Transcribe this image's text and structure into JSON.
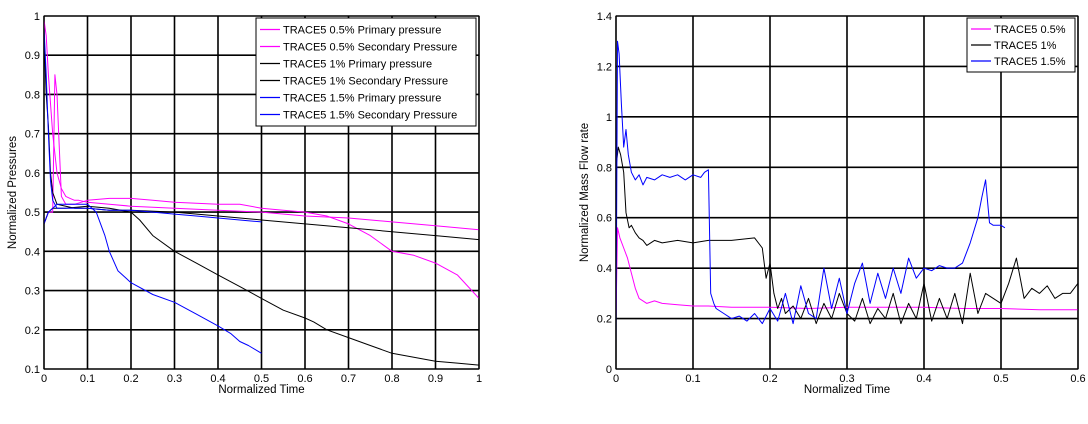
{
  "chart_data": [
    {
      "type": "line",
      "xlabel": "Normalized Time",
      "ylabel": "Normalized Pressures",
      "xlim": [
        0,
        1
      ],
      "ylim": [
        0.1,
        1
      ],
      "xticks": [
        0,
        0.1,
        0.2,
        0.3,
        0.4,
        0.5,
        0.6,
        0.7,
        0.8,
        0.9,
        1
      ],
      "xtick_labels": [
        "0",
        "0.1",
        "0.2",
        "0.3",
        "0.4",
        "0.5",
        "0.6",
        "0.7",
        "0.8",
        "0.9",
        "1"
      ],
      "yticks": [
        0.1,
        0.2,
        0.3,
        0.4,
        0.5,
        0.6,
        0.7,
        0.8,
        0.9,
        1
      ],
      "ytick_labels": [
        "0.1",
        "0.2",
        "0.3",
        "0.4",
        "0.5",
        "0.6",
        "0.7",
        "0.8",
        "0.9",
        "1"
      ],
      "grid": true,
      "legend_position": "top-right",
      "series": [
        {
          "name": "TRACE5 0.5% Primary pressure",
          "color": "#ff00ff",
          "x": [
            0,
            0.005,
            0.01,
            0.02,
            0.03,
            0.04,
            0.05,
            0.06,
            0.07,
            0.08,
            0.1,
            0.15,
            0.2,
            0.3,
            0.4,
            0.5,
            0.6,
            0.7,
            0.8,
            0.9,
            1.0
          ],
          "y": [
            0.99,
            0.95,
            0.85,
            0.7,
            0.6,
            0.56,
            0.54,
            0.535,
            0.53,
            0.53,
            0.525,
            0.52,
            0.515,
            0.51,
            0.505,
            0.5,
            0.49,
            0.485,
            0.475,
            0.465,
            0.455
          ]
        },
        {
          "name": "TRACE5 0.5% Secondary Pressure",
          "color": "#ff00ff",
          "x": [
            0,
            0.01,
            0.02,
            0.025,
            0.03,
            0.04,
            0.05,
            0.07,
            0.1,
            0.15,
            0.2,
            0.25,
            0.3,
            0.4,
            0.45,
            0.5,
            0.55,
            0.6,
            0.65,
            0.7,
            0.75,
            0.8,
            0.85,
            0.9,
            0.95,
            1.0
          ],
          "y": [
            0.47,
            0.5,
            0.5,
            0.85,
            0.8,
            0.54,
            0.52,
            0.52,
            0.53,
            0.535,
            0.535,
            0.53,
            0.525,
            0.52,
            0.52,
            0.51,
            0.505,
            0.5,
            0.49,
            0.47,
            0.44,
            0.4,
            0.39,
            0.37,
            0.34,
            0.28
          ]
        },
        {
          "name": "TRACE5 1% Primary pressure",
          "color": "#000000",
          "x": [
            0,
            0.005,
            0.01,
            0.015,
            0.02,
            0.03,
            0.05,
            0.07,
            0.1,
            0.15,
            0.2,
            0.3,
            0.4,
            0.5,
            0.6,
            0.7,
            0.8,
            0.9,
            1.0
          ],
          "y": [
            0.95,
            0.8,
            0.72,
            0.6,
            0.55,
            0.52,
            0.515,
            0.51,
            0.51,
            0.505,
            0.505,
            0.5,
            0.49,
            0.48,
            0.47,
            0.46,
            0.45,
            0.44,
            0.43
          ]
        },
        {
          "name": "TRACE5 1% Secondary Pressure",
          "color": "#000000",
          "x": [
            0,
            0.01,
            0.02,
            0.03,
            0.05,
            0.1,
            0.15,
            0.2,
            0.22,
            0.25,
            0.3,
            0.35,
            0.4,
            0.45,
            0.5,
            0.55,
            0.6,
            0.62,
            0.65,
            0.7,
            0.75,
            0.8,
            0.85,
            0.9,
            0.95,
            1.0
          ],
          "y": [
            0.47,
            0.5,
            0.51,
            0.51,
            0.51,
            0.515,
            0.51,
            0.5,
            0.48,
            0.44,
            0.4,
            0.37,
            0.34,
            0.31,
            0.28,
            0.25,
            0.23,
            0.22,
            0.2,
            0.18,
            0.16,
            0.14,
            0.13,
            0.12,
            0.115,
            0.11
          ]
        },
        {
          "name": "TRACE5 1.5% Primary pressure",
          "color": "#0000ff",
          "x": [
            0,
            0.005,
            0.01,
            0.015,
            0.02,
            0.03,
            0.05,
            0.07,
            0.1,
            0.15,
            0.2,
            0.25,
            0.3,
            0.35,
            0.4,
            0.45,
            0.5
          ],
          "y": [
            0.97,
            0.85,
            0.7,
            0.58,
            0.53,
            0.51,
            0.51,
            0.51,
            0.51,
            0.505,
            0.505,
            0.5,
            0.495,
            0.49,
            0.485,
            0.48,
            0.475
          ]
        },
        {
          "name": "TRACE5 1.5% Secondary Pressure",
          "color": "#0000ff",
          "x": [
            0,
            0.01,
            0.02,
            0.03,
            0.05,
            0.07,
            0.1,
            0.12,
            0.14,
            0.15,
            0.17,
            0.2,
            0.25,
            0.3,
            0.35,
            0.4,
            0.43,
            0.45,
            0.47,
            0.5
          ],
          "y": [
            0.47,
            0.5,
            0.51,
            0.52,
            0.52,
            0.52,
            0.52,
            0.5,
            0.44,
            0.4,
            0.35,
            0.32,
            0.29,
            0.27,
            0.24,
            0.21,
            0.19,
            0.17,
            0.16,
            0.14
          ]
        }
      ]
    },
    {
      "type": "line",
      "xlabel": "Normalized Time",
      "ylabel": "Normalized Mass Flow rate",
      "xlim": [
        0,
        0.6
      ],
      "ylim": [
        0,
        1.4
      ],
      "xticks": [
        0,
        0.1,
        0.2,
        0.3,
        0.4,
        0.5,
        0.6
      ],
      "xtick_labels": [
        "0",
        "0.1",
        "0.2",
        "0.3",
        "0.4",
        "0.5",
        "0.6"
      ],
      "yticks": [
        0,
        0.2,
        0.4,
        0.6,
        0.8,
        1.0,
        1.2,
        1.4
      ],
      "ytick_labels": [
        "0",
        "0.2",
        "0.4",
        "0.6",
        "0.8",
        "1",
        "1.2",
        "1.4"
      ],
      "grid": true,
      "legend_position": "top-right",
      "series": [
        {
          "name": "TRACE5 0.5%",
          "color": "#ff00ff",
          "x": [
            0,
            0.002,
            0.005,
            0.01,
            0.015,
            0.02,
            0.025,
            0.03,
            0.035,
            0.04,
            0.05,
            0.06,
            0.08,
            0.1,
            0.12,
            0.15,
            0.2,
            0.25,
            0.3,
            0.35,
            0.4,
            0.45,
            0.5,
            0.55,
            0.6
          ],
          "y": [
            0.2,
            0.56,
            0.52,
            0.48,
            0.44,
            0.38,
            0.32,
            0.28,
            0.27,
            0.26,
            0.27,
            0.26,
            0.255,
            0.25,
            0.25,
            0.245,
            0.245,
            0.24,
            0.245,
            0.245,
            0.245,
            0.24,
            0.24,
            0.235,
            0.235
          ]
        },
        {
          "name": "TRACE5 1%",
          "color": "#000000",
          "x": [
            0,
            0.003,
            0.006,
            0.01,
            0.013,
            0.017,
            0.02,
            0.025,
            0.03,
            0.035,
            0.04,
            0.05,
            0.06,
            0.08,
            0.1,
            0.12,
            0.15,
            0.18,
            0.19,
            0.195,
            0.2,
            0.205,
            0.21,
            0.215,
            0.22,
            0.23,
            0.24,
            0.25,
            0.26,
            0.27,
            0.28,
            0.29,
            0.3,
            0.31,
            0.32,
            0.33,
            0.34,
            0.35,
            0.36,
            0.37,
            0.38,
            0.39,
            0.4,
            0.41,
            0.42,
            0.43,
            0.44,
            0.45,
            0.46,
            0.47,
            0.48,
            0.49,
            0.5,
            0.51,
            0.52,
            0.53,
            0.54,
            0.55,
            0.56,
            0.57,
            0.58,
            0.59,
            0.6
          ],
          "y": [
            0.8,
            0.88,
            0.85,
            0.78,
            0.62,
            0.56,
            0.57,
            0.54,
            0.52,
            0.51,
            0.49,
            0.51,
            0.5,
            0.51,
            0.5,
            0.51,
            0.51,
            0.52,
            0.48,
            0.36,
            0.42,
            0.3,
            0.24,
            0.28,
            0.22,
            0.25,
            0.2,
            0.28,
            0.18,
            0.26,
            0.2,
            0.3,
            0.22,
            0.19,
            0.28,
            0.18,
            0.24,
            0.2,
            0.3,
            0.18,
            0.26,
            0.2,
            0.34,
            0.19,
            0.28,
            0.2,
            0.3,
            0.18,
            0.38,
            0.22,
            0.3,
            0.28,
            0.26,
            0.34,
            0.44,
            0.28,
            0.32,
            0.3,
            0.33,
            0.28,
            0.3,
            0.3,
            0.34
          ]
        },
        {
          "name": "TRACE5 1.5%",
          "color": "#0000ff",
          "x": [
            0,
            0.002,
            0.004,
            0.007,
            0.01,
            0.013,
            0.016,
            0.02,
            0.025,
            0.03,
            0.035,
            0.04,
            0.05,
            0.06,
            0.07,
            0.08,
            0.09,
            0.1,
            0.11,
            0.115,
            0.12,
            0.123,
            0.127,
            0.13,
            0.14,
            0.15,
            0.16,
            0.17,
            0.18,
            0.19,
            0.2,
            0.21,
            0.22,
            0.23,
            0.24,
            0.25,
            0.26,
            0.27,
            0.28,
            0.29,
            0.3,
            0.31,
            0.32,
            0.33,
            0.34,
            0.35,
            0.36,
            0.37,
            0.38,
            0.39,
            0.4,
            0.41,
            0.42,
            0.43,
            0.44,
            0.45,
            0.46,
            0.47,
            0.475,
            0.48,
            0.485,
            0.49,
            0.5,
            0.505
          ],
          "y": [
            0.1,
            1.3,
            1.25,
            1.05,
            0.88,
            0.95,
            0.85,
            0.78,
            0.75,
            0.77,
            0.73,
            0.76,
            0.75,
            0.77,
            0.76,
            0.77,
            0.75,
            0.77,
            0.76,
            0.78,
            0.79,
            0.3,
            0.26,
            0.24,
            0.22,
            0.2,
            0.21,
            0.19,
            0.22,
            0.18,
            0.24,
            0.19,
            0.3,
            0.18,
            0.33,
            0.22,
            0.2,
            0.4,
            0.24,
            0.36,
            0.22,
            0.34,
            0.42,
            0.26,
            0.38,
            0.28,
            0.4,
            0.3,
            0.44,
            0.36,
            0.4,
            0.39,
            0.41,
            0.4,
            0.4,
            0.42,
            0.5,
            0.6,
            0.68,
            0.75,
            0.58,
            0.57,
            0.57,
            0.56
          ]
        }
      ]
    }
  ]
}
